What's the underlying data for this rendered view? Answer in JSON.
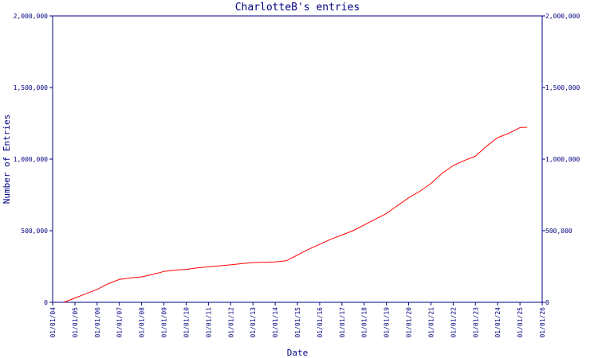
{
  "colors": {
    "axis": "#000080",
    "text": "#000080",
    "series": "#ff0000",
    "background": "#ffffff"
  },
  "chart_data": {
    "type": "line",
    "title": "CharlotteB's entries",
    "xlabel": "Date",
    "ylabel": "Number of Entries",
    "x_scale": "time",
    "xlim": [
      "2004-01-01",
      "2026-01-01"
    ],
    "ylim": [
      0,
      2000000
    ],
    "grid": false,
    "legend": "none",
    "y_ticks": [
      0,
      500000,
      1000000,
      1500000,
      2000000
    ],
    "y_tick_labels": [
      "0",
      "500,000",
      "1,000,000",
      "1,500,000",
      "2,000,000"
    ],
    "y_tick_labels_right": [
      "0",
      "500,000",
      "1,000,000",
      "1,500,000",
      "2,000,000"
    ],
    "x_ticks": [
      "2004-01-01",
      "2005-01-01",
      "2006-01-01",
      "2007-01-01",
      "2008-01-01",
      "2009-01-01",
      "2010-01-01",
      "2011-01-01",
      "2012-01-01",
      "2013-01-01",
      "2014-01-01",
      "2015-01-01",
      "2016-01-01",
      "2017-01-01",
      "2018-01-01",
      "2019-01-01",
      "2020-01-01",
      "2021-01-01",
      "2022-01-01",
      "2023-01-01",
      "2024-01-01",
      "2025-01-01",
      "2026-01-01"
    ],
    "x_tick_labels": [
      "01/01/04",
      "01/01/05",
      "01/01/06",
      "01/01/07",
      "01/01/08",
      "01/01/09",
      "01/01/10",
      "01/01/11",
      "01/01/12",
      "01/01/13",
      "01/01/14",
      "01/01/15",
      "01/01/16",
      "01/01/17",
      "01/01/18",
      "01/01/19",
      "01/01/20",
      "01/01/21",
      "01/01/22",
      "01/01/23",
      "01/01/24",
      "01/01/25",
      "01/01/26"
    ],
    "series": [
      {
        "color": "#ff0000",
        "points": [
          [
            "2004-07-01",
            0
          ],
          [
            "2005-01-01",
            30000
          ],
          [
            "2005-07-01",
            60000
          ],
          [
            "2006-01-01",
            90000
          ],
          [
            "2006-07-01",
            130000
          ],
          [
            "2007-01-01",
            160000
          ],
          [
            "2007-07-01",
            170000
          ],
          [
            "2008-01-01",
            178000
          ],
          [
            "2008-07-01",
            195000
          ],
          [
            "2009-01-01",
            215000
          ],
          [
            "2009-07-01",
            225000
          ],
          [
            "2010-01-01",
            230000
          ],
          [
            "2010-07-01",
            240000
          ],
          [
            "2011-01-01",
            248000
          ],
          [
            "2011-07-01",
            255000
          ],
          [
            "2012-01-01",
            262000
          ],
          [
            "2012-07-01",
            270000
          ],
          [
            "2013-01-01",
            278000
          ],
          [
            "2013-07-01",
            280000
          ],
          [
            "2014-01-01",
            282000
          ],
          [
            "2014-07-01",
            290000
          ],
          [
            "2015-01-01",
            330000
          ],
          [
            "2015-07-01",
            370000
          ],
          [
            "2016-01-01",
            405000
          ],
          [
            "2016-07-01",
            440000
          ],
          [
            "2017-01-01",
            470000
          ],
          [
            "2017-07-01",
            500000
          ],
          [
            "2018-01-01",
            540000
          ],
          [
            "2018-07-01",
            580000
          ],
          [
            "2019-01-01",
            620000
          ],
          [
            "2019-07-01",
            675000
          ],
          [
            "2020-01-01",
            730000
          ],
          [
            "2020-07-01",
            775000
          ],
          [
            "2021-01-01",
            830000
          ],
          [
            "2021-07-01",
            900000
          ],
          [
            "2022-01-01",
            955000
          ],
          [
            "2022-07-01",
            990000
          ],
          [
            "2023-01-01",
            1020000
          ],
          [
            "2023-07-01",
            1090000
          ],
          [
            "2024-01-01",
            1150000
          ],
          [
            "2024-07-01",
            1180000
          ],
          [
            "2025-01-01",
            1220000
          ],
          [
            "2025-05-01",
            1222000
          ]
        ]
      }
    ]
  }
}
